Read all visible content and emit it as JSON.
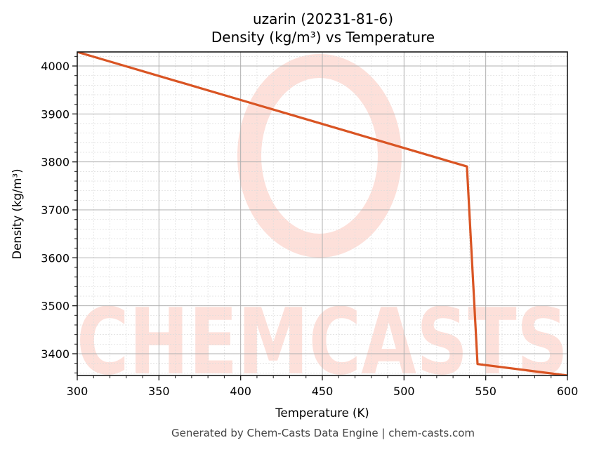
{
  "header": {
    "title_line1": "uzarin (20231-81-6)",
    "title_line2": "Density (kg/m³) vs Temperature"
  },
  "footer": {
    "text": "Generated by Chem-Casts Data Engine | chem-casts.com"
  },
  "watermark": {
    "text": "CHEMCASTS",
    "color": "#fde0da"
  },
  "colors": {
    "line": "#d95423",
    "major_grid": "#b0b0b0",
    "minor_grid": "#dcdcdc",
    "axes": "#1a1a1a"
  },
  "chart_data": {
    "type": "line",
    "title": "uzarin (20231-81-6)\nDensity (kg/m³) vs Temperature",
    "xlabel": "Temperature (K)",
    "ylabel": "Density (kg/m³)",
    "xlim": [
      300,
      600
    ],
    "ylim": [
      3354.6,
      4029.3
    ],
    "xticks": [
      300,
      350,
      400,
      450,
      500,
      550,
      600
    ],
    "yticks": [
      3400,
      3500,
      3600,
      3700,
      3800,
      3900,
      4000
    ],
    "xtick_labels": [
      "300",
      "350",
      "400",
      "450",
      "500",
      "550",
      "600"
    ],
    "ytick_labels": [
      "3400",
      "3500",
      "3600",
      "3700",
      "3800",
      "3900",
      "4000"
    ],
    "grid": true,
    "minor_grid": true,
    "legend": null,
    "series": [
      {
        "name": "Density",
        "x": [
          300,
          538.5,
          545,
          600
        ],
        "y": [
          4029.3,
          3790.5,
          3378.5,
          3354.6
        ]
      }
    ]
  }
}
